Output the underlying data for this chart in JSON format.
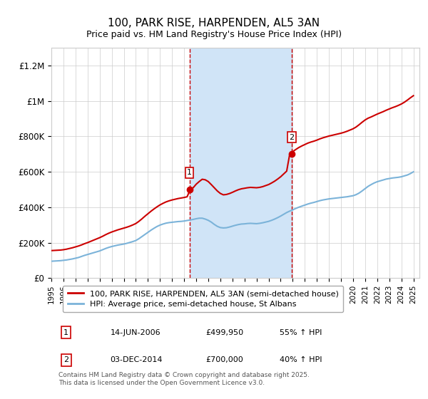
{
  "title": "100, PARK RISE, HARPENDEN, AL5 3AN",
  "subtitle": "Price paid vs. HM Land Registry's House Price Index (HPI)",
  "ylabel_ticks": [
    "£0",
    "£200K",
    "£400K",
    "£600K",
    "£800K",
    "£1M",
    "£1.2M"
  ],
  "ytick_vals": [
    0,
    200000,
    400000,
    600000,
    800000,
    1000000,
    1200000
  ],
  "ylim": [
    0,
    1300000
  ],
  "xlim_start": 1995.0,
  "xlim_end": 2025.5,
  "xticks": [
    1995,
    1996,
    1997,
    1998,
    1999,
    2000,
    2001,
    2002,
    2003,
    2004,
    2005,
    2006,
    2007,
    2008,
    2009,
    2010,
    2011,
    2012,
    2013,
    2014,
    2015,
    2016,
    2017,
    2018,
    2019,
    2020,
    2021,
    2022,
    2023,
    2024,
    2025
  ],
  "sale1_x": 2006.45,
  "sale1_y": 499950,
  "sale1_label": "1",
  "sale2_x": 2014.92,
  "sale2_y": 700000,
  "sale2_label": "2",
  "shade_color": "#d0e4f7",
  "red_line_color": "#cc0000",
  "blue_line_color": "#7bb3d9",
  "sale_marker_color": "#cc0000",
  "vline_color": "#cc0000",
  "background_color": "#ffffff",
  "grid_color": "#cccccc",
  "legend1_label": "100, PARK RISE, HARPENDEN, AL5 3AN (semi-detached house)",
  "legend2_label": "HPI: Average price, semi-detached house, St Albans",
  "table_row1": [
    "1",
    "14-JUN-2006",
    "£499,950",
    "55% ↑ HPI"
  ],
  "table_row2": [
    "2",
    "03-DEC-2014",
    "£700,000",
    "40% ↑ HPI"
  ],
  "footer": "Contains HM Land Registry data © Crown copyright and database right 2025.\nThis data is licensed under the Open Government Licence v3.0.",
  "hpi_data_x": [
    1995.0,
    1995.25,
    1995.5,
    1995.75,
    1996.0,
    1996.25,
    1996.5,
    1996.75,
    1997.0,
    1997.25,
    1997.5,
    1997.75,
    1998.0,
    1998.25,
    1998.5,
    1998.75,
    1999.0,
    1999.25,
    1999.5,
    1999.75,
    2000.0,
    2000.25,
    2000.5,
    2000.75,
    2001.0,
    2001.25,
    2001.5,
    2001.75,
    2002.0,
    2002.25,
    2002.5,
    2002.75,
    2003.0,
    2003.25,
    2003.5,
    2003.75,
    2004.0,
    2004.25,
    2004.5,
    2004.75,
    2005.0,
    2005.25,
    2005.5,
    2005.75,
    2006.0,
    2006.25,
    2006.5,
    2006.75,
    2007.0,
    2007.25,
    2007.5,
    2007.75,
    2008.0,
    2008.25,
    2008.5,
    2008.75,
    2009.0,
    2009.25,
    2009.5,
    2009.75,
    2010.0,
    2010.25,
    2010.5,
    2010.75,
    2011.0,
    2011.25,
    2011.5,
    2011.75,
    2012.0,
    2012.25,
    2012.5,
    2012.75,
    2013.0,
    2013.25,
    2013.5,
    2013.75,
    2014.0,
    2014.25,
    2014.5,
    2014.75,
    2015.0,
    2015.25,
    2015.5,
    2015.75,
    2016.0,
    2016.25,
    2016.5,
    2016.75,
    2017.0,
    2017.25,
    2017.5,
    2017.75,
    2018.0,
    2018.25,
    2018.5,
    2018.75,
    2019.0,
    2019.25,
    2019.5,
    2019.75,
    2020.0,
    2020.25,
    2020.5,
    2020.75,
    2021.0,
    2021.25,
    2021.5,
    2021.75,
    2022.0,
    2022.25,
    2022.5,
    2022.75,
    2023.0,
    2023.25,
    2023.5,
    2023.75,
    2024.0,
    2024.25,
    2024.5,
    2024.75,
    2025.0
  ],
  "hpi_data_y": [
    95000,
    96000,
    97000,
    98000,
    100000,
    102000,
    105000,
    108000,
    112000,
    116000,
    122000,
    128000,
    133000,
    138000,
    143000,
    148000,
    153000,
    160000,
    167000,
    173000,
    178000,
    182000,
    186000,
    189000,
    192000,
    196000,
    201000,
    206000,
    212000,
    222000,
    234000,
    246000,
    258000,
    270000,
    281000,
    291000,
    299000,
    305000,
    310000,
    313000,
    315000,
    317000,
    319000,
    320000,
    322000,
    325000,
    328000,
    331000,
    335000,
    338000,
    338000,
    333000,
    326000,
    316000,
    303000,
    292000,
    285000,
    283000,
    284000,
    288000,
    293000,
    298000,
    302000,
    305000,
    306000,
    308000,
    309000,
    308000,
    307000,
    309000,
    312000,
    316000,
    320000,
    326000,
    333000,
    341000,
    350000,
    360000,
    370000,
    378000,
    385000,
    393000,
    400000,
    406000,
    412000,
    418000,
    423000,
    427000,
    432000,
    437000,
    441000,
    444000,
    447000,
    449000,
    451000,
    453000,
    455000,
    457000,
    459000,
    462000,
    465000,
    471000,
    480000,
    492000,
    505000,
    518000,
    528000,
    537000,
    544000,
    549000,
    554000,
    559000,
    562000,
    565000,
    567000,
    569000,
    572000,
    577000,
    582000,
    590000,
    600000
  ],
  "red_data_x": [
    1995.0,
    1995.25,
    1995.5,
    1995.75,
    1996.0,
    1996.25,
    1996.5,
    1996.75,
    1997.0,
    1997.25,
    1997.5,
    1997.75,
    1998.0,
    1998.25,
    1998.5,
    1998.75,
    1999.0,
    1999.25,
    1999.5,
    1999.75,
    2000.0,
    2000.25,
    2000.5,
    2000.75,
    2001.0,
    2001.25,
    2001.5,
    2001.75,
    2002.0,
    2002.25,
    2002.5,
    2002.75,
    2003.0,
    2003.25,
    2003.5,
    2003.75,
    2004.0,
    2004.25,
    2004.5,
    2004.75,
    2005.0,
    2005.25,
    2005.5,
    2005.75,
    2006.0,
    2006.25,
    2006.5,
    2006.75,
    2007.0,
    2007.25,
    2007.5,
    2007.75,
    2008.0,
    2008.25,
    2008.5,
    2008.75,
    2009.0,
    2009.25,
    2009.5,
    2009.75,
    2010.0,
    2010.25,
    2010.5,
    2010.75,
    2011.0,
    2011.25,
    2011.5,
    2011.75,
    2012.0,
    2012.25,
    2012.5,
    2012.75,
    2013.0,
    2013.25,
    2013.5,
    2013.75,
    2014.0,
    2014.25,
    2014.5,
    2014.75,
    2015.0,
    2015.25,
    2015.5,
    2015.75,
    2016.0,
    2016.25,
    2016.5,
    2016.75,
    2017.0,
    2017.25,
    2017.5,
    2017.75,
    2018.0,
    2018.25,
    2018.5,
    2018.75,
    2019.0,
    2019.25,
    2019.5,
    2019.75,
    2020.0,
    2020.25,
    2020.5,
    2020.75,
    2021.0,
    2021.25,
    2021.5,
    2021.75,
    2022.0,
    2022.25,
    2022.5,
    2022.75,
    2023.0,
    2023.25,
    2023.5,
    2023.75,
    2024.0,
    2024.25,
    2024.5,
    2024.75,
    2025.0
  ],
  "red_data_y": [
    155000,
    156000,
    157000,
    158000,
    160000,
    163000,
    167000,
    171000,
    176000,
    181000,
    187000,
    194000,
    200000,
    207000,
    214000,
    221000,
    228000,
    236000,
    245000,
    253000,
    260000,
    266000,
    272000,
    277000,
    282000,
    287000,
    293000,
    300000,
    308000,
    320000,
    334000,
    349000,
    363000,
    377000,
    390000,
    402000,
    413000,
    422000,
    430000,
    436000,
    441000,
    445000,
    449000,
    452000,
    455000,
    459000,
    499950,
    510000,
    530000,
    545000,
    558000,
    555000,
    545000,
    528000,
    510000,
    492000,
    478000,
    470000,
    472000,
    477000,
    484000,
    492000,
    499000,
    504000,
    507000,
    510000,
    512000,
    511000,
    510000,
    512000,
    516000,
    522000,
    528000,
    537000,
    547000,
    559000,
    572000,
    588000,
    604000,
    700000,
    714000,
    726000,
    737000,
    746000,
    754000,
    762000,
    768000,
    773000,
    779000,
    786000,
    792000,
    797000,
    802000,
    806000,
    810000,
    814000,
    818000,
    823000,
    829000,
    836000,
    843000,
    853000,
    866000,
    880000,
    893000,
    903000,
    910000,
    918000,
    926000,
    933000,
    940000,
    948000,
    955000,
    962000,
    968000,
    975000,
    983000,
    993000,
    1005000,
    1018000,
    1030000
  ]
}
